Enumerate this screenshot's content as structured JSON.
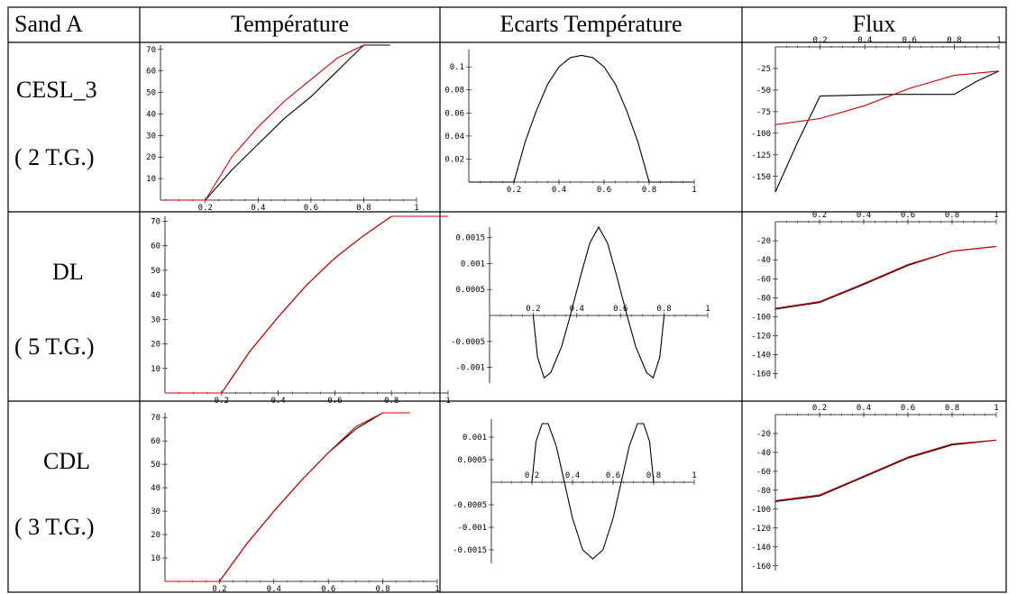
{
  "headers": [
    "Sand A",
    "Température",
    "Ecarts Température",
    "Flux"
  ],
  "rows": [
    {
      "method": "CESL_3",
      "groups": "( 2 T.G.)"
    },
    {
      "method": "DL",
      "groups": "( 5 T.G.)"
    },
    {
      "method": "CDL",
      "groups": "( 3 T.G.)"
    }
  ],
  "colors": {
    "reference": "#000000",
    "method": "#d00000"
  },
  "chart_data": [
    {
      "row": 0,
      "column": "Température",
      "type": "line",
      "xticks": [
        0.2,
        0.4,
        0.6,
        0.8,
        1
      ],
      "yticks": [
        10,
        20,
        30,
        40,
        50,
        60,
        70
      ],
      "xlim": [
        0.03,
        1.0
      ],
      "ylim": [
        0,
        72
      ],
      "series": [
        {
          "color": "#000000",
          "x": [
            0.05,
            0.2,
            0.3,
            0.4,
            0.5,
            0.6,
            0.7,
            0.8,
            0.9
          ],
          "y": [
            0,
            0,
            14,
            26,
            38,
            48,
            60,
            72,
            72
          ]
        },
        {
          "color": "#d00000",
          "x": [
            0.05,
            0.2,
            0.3,
            0.4,
            0.5,
            0.6,
            0.7,
            0.8
          ],
          "y": [
            0,
            0,
            20,
            34,
            46,
            56,
            66,
            72
          ]
        }
      ]
    },
    {
      "row": 0,
      "column": "Ecarts Température",
      "type": "line",
      "xticks": [
        0.2,
        0.4,
        0.6,
        0.8,
        1
      ],
      "yticks": [
        0.02,
        0.04,
        0.06,
        0.08,
        0.1
      ],
      "xlim": [
        0.0,
        1.0
      ],
      "ylim": [
        0,
        0.115
      ],
      "series": [
        {
          "color": "#000000",
          "x": [
            0.0,
            0.2,
            0.25,
            0.3,
            0.35,
            0.4,
            0.45,
            0.5,
            0.55,
            0.6,
            0.65,
            0.7,
            0.75,
            0.8,
            1.0
          ],
          "y": [
            0,
            0,
            0.035,
            0.062,
            0.085,
            0.1,
            0.108,
            0.11,
            0.108,
            0.1,
            0.085,
            0.062,
            0.035,
            0,
            0
          ]
        }
      ]
    },
    {
      "row": 0,
      "column": "Flux",
      "type": "line",
      "xticks": [
        0.2,
        0.4,
        0.6,
        0.8,
        1
      ],
      "yticks": [
        -25,
        -50,
        -75,
        -100,
        -125,
        -150
      ],
      "xlim": [
        0.0,
        1.0
      ],
      "ylim": [
        -168,
        0
      ],
      "series": [
        {
          "color": "#000000",
          "x": [
            0.0,
            0.1,
            0.2,
            0.5,
            0.8,
            0.9,
            1.0
          ],
          "y": [
            -168,
            -110,
            -57,
            -55,
            -55,
            -40,
            -28
          ]
        },
        {
          "color": "#d00000",
          "x": [
            0.0,
            0.2,
            0.4,
            0.6,
            0.8,
            1.0
          ],
          "y": [
            -90,
            -83,
            -68,
            -48,
            -33,
            -28
          ]
        }
      ]
    },
    {
      "row": 1,
      "column": "Température",
      "type": "line",
      "xticks": [
        0.2,
        0.4,
        0.6,
        0.8,
        1
      ],
      "yticks": [
        10,
        20,
        30,
        40,
        50,
        60,
        70
      ],
      "xlim": [
        0.0,
        1.0
      ],
      "ylim": [
        0,
        72
      ],
      "series": [
        {
          "color": "#000000",
          "x": [
            0.0,
            0.2,
            0.3,
            0.4,
            0.5,
            0.6,
            0.7,
            0.8,
            0.9,
            1.0
          ],
          "y": [
            0,
            0,
            17,
            31,
            44,
            55,
            64,
            72,
            72,
            72
          ]
        },
        {
          "color": "#d00000",
          "x": [
            0.0,
            0.2,
            0.3,
            0.4,
            0.5,
            0.6,
            0.7,
            0.8,
            0.9,
            1.0
          ],
          "y": [
            0,
            0,
            17,
            31,
            44,
            55,
            64,
            72,
            72,
            72
          ]
        }
      ]
    },
    {
      "row": 1,
      "column": "Ecarts Température",
      "type": "line",
      "xticks": [
        0.2,
        0.4,
        0.6,
        0.8,
        1
      ],
      "yticks": [
        0.0015,
        0.001,
        0.0005,
        -0.0005,
        -0.001
      ],
      "xlim": [
        0.0,
        1.0
      ],
      "ylim": [
        -0.0013,
        0.0017
      ],
      "series": [
        {
          "color": "#000000",
          "x": [
            0.2,
            0.22,
            0.25,
            0.28,
            0.33,
            0.37,
            0.42,
            0.46,
            0.5,
            0.54,
            0.58,
            0.63,
            0.67,
            0.72,
            0.75,
            0.78,
            0.8
          ],
          "y": [
            0,
            -0.0008,
            -0.0012,
            -0.0011,
            -0.0006,
            0,
            0.0008,
            0.0014,
            0.0017,
            0.0014,
            0.0008,
            0,
            -0.0006,
            -0.0011,
            -0.0012,
            -0.0008,
            0
          ]
        }
      ]
    },
    {
      "row": 1,
      "column": "Flux",
      "type": "line",
      "xticks": [
        0.2,
        0.4,
        0.6,
        0.8,
        1
      ],
      "yticks": [
        -20,
        -40,
        -60,
        -80,
        -100,
        -120,
        -140,
        -160
      ],
      "xlim": [
        0.0,
        1.0
      ],
      "ylim": [
        -165,
        0
      ],
      "series": [
        {
          "color": "#000000",
          "x": [
            0.0,
            0.2,
            0.4,
            0.6,
            0.8,
            1.0
          ],
          "y": [
            -92,
            -85,
            -66,
            -46,
            -31,
            -26
          ]
        },
        {
          "color": "#d00000",
          "x": [
            0.0,
            0.2,
            0.4,
            0.6,
            0.8,
            1.0
          ],
          "y": [
            -91,
            -84,
            -65,
            -45,
            -31,
            -26
          ]
        }
      ]
    },
    {
      "row": 2,
      "column": "Température",
      "type": "line",
      "xticks": [
        0.2,
        0.4,
        0.6,
        0.8,
        1
      ],
      "yticks": [
        10,
        20,
        30,
        40,
        50,
        60,
        70
      ],
      "xlim": [
        0.0,
        1.0
      ],
      "ylim": [
        0,
        72
      ],
      "series": [
        {
          "color": "#000000",
          "x": [
            0.0,
            0.2,
            0.3,
            0.4,
            0.5,
            0.6,
            0.7,
            0.8,
            0.9
          ],
          "y": [
            0,
            0,
            16,
            30,
            43,
            55,
            65,
            72,
            72
          ]
        },
        {
          "color": "#d00000",
          "x": [
            0.0,
            0.2,
            0.3,
            0.4,
            0.5,
            0.6,
            0.7,
            0.8,
            0.9
          ],
          "y": [
            0,
            0,
            16,
            30,
            43,
            55,
            66,
            72,
            72
          ]
        }
      ]
    },
    {
      "row": 2,
      "column": "Ecarts Température",
      "type": "line",
      "xticks": [
        0.2,
        0.4,
        0.6,
        0.8,
        1
      ],
      "yticks": [
        0.001,
        0.0005,
        -0.0005,
        -0.001,
        -0.0015
      ],
      "xlim": [
        0.0,
        1.0
      ],
      "ylim": [
        -0.0018,
        0.0014
      ],
      "series": [
        {
          "color": "#000000",
          "x": [
            0.2,
            0.22,
            0.25,
            0.28,
            0.32,
            0.36,
            0.4,
            0.45,
            0.5,
            0.55,
            0.6,
            0.64,
            0.68,
            0.72,
            0.75,
            0.78,
            0.8
          ],
          "y": [
            0,
            0.0009,
            0.0013,
            0.0013,
            0.0008,
            0,
            -0.0008,
            -0.0015,
            -0.0017,
            -0.0015,
            -0.0008,
            0,
            0.0008,
            0.0013,
            0.0013,
            0.0009,
            0
          ]
        }
      ]
    },
    {
      "row": 2,
      "column": "Flux",
      "type": "line",
      "xticks": [
        0.2,
        0.4,
        0.6,
        0.8,
        1
      ],
      "yticks": [
        -20,
        -40,
        -60,
        -80,
        -100,
        -120,
        -140,
        -160
      ],
      "xlim": [
        0.0,
        1.0
      ],
      "ylim": [
        -165,
        0
      ],
      "series": [
        {
          "color": "#000000",
          "x": [
            0.0,
            0.2,
            0.4,
            0.6,
            0.8,
            1.0
          ],
          "y": [
            -92,
            -86,
            -66,
            -46,
            -32,
            -27
          ]
        },
        {
          "color": "#d00000",
          "x": [
            0.0,
            0.2,
            0.4,
            0.6,
            0.8,
            1.0
          ],
          "y": [
            -91,
            -85,
            -65,
            -45,
            -31,
            -27
          ]
        }
      ]
    }
  ]
}
